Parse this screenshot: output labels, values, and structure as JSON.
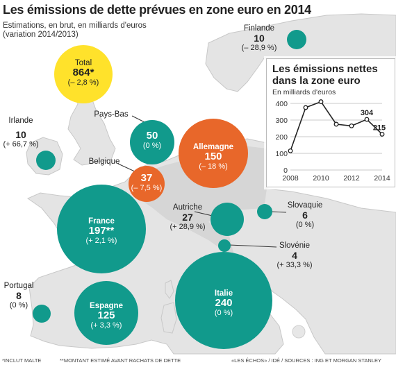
{
  "title": "Les émissions de dette prévues en zone euro en 2014",
  "subtitle_line1": "Estimations, en brut, en milliards d'euros",
  "subtitle_line2": "(variation 2014/2013)",
  "colors": {
    "teal": "#119a8c",
    "orange": "#e8672a",
    "yellow": "#ffe22b",
    "land": "#e4e4e4",
    "coast": "#c4c4c4",
    "sea": "#ffffff"
  },
  "countries": {
    "total": {
      "name": "Total",
      "value": "864*",
      "variation": "(– 2,8 %)"
    },
    "finlande": {
      "name": "Finlande",
      "value": "10",
      "variation": "(– 28,9 %)"
    },
    "irlande": {
      "name": "Irlande",
      "value": "10",
      "variation": "(+ 66,7 %)"
    },
    "pays_bas": {
      "name": "Pays-Bas",
      "value": "50",
      "variation": "(0 %)"
    },
    "allemagne": {
      "name": "Allemagne",
      "value": "150",
      "variation": "(– 18 %)"
    },
    "belgique": {
      "name": "Belgique",
      "value": "37",
      "variation": "(– 7,5 %)"
    },
    "autriche": {
      "name": "Autriche",
      "value": "27",
      "variation": "(+ 28,9 %)"
    },
    "slovaquie": {
      "name": "Slovaquie",
      "value": "6",
      "variation": "(0 %)"
    },
    "france": {
      "name": "France",
      "value": "197**",
      "variation": "(+ 2,1 %)"
    },
    "slovenie": {
      "name": "Slovénie",
      "value": "4",
      "variation": "(+ 33,3 %)"
    },
    "portugal": {
      "name": "Portugal",
      "value": "8",
      "variation": "(0 %)"
    },
    "espagne": {
      "name": "Espagne",
      "value": "125",
      "variation": "(+ 3,3 %)"
    },
    "italie": {
      "name": "Italie",
      "value": "240",
      "variation": "(0 %)"
    },
    "grece": {
      "name": "",
      "value": "",
      "variation": ""
    }
  },
  "inset": {
    "title_line1": "Les émissions nettes",
    "title_line2": "dans la zone euro",
    "subtitle": "En milliards d'euros"
  },
  "chart_data": {
    "type": "line",
    "title": "Les émissions nettes dans la zone euro",
    "subtitle": "En milliards d'euros",
    "x": [
      2008,
      2009,
      2010,
      2011,
      2012,
      2013,
      2014
    ],
    "series": [
      {
        "values": [
          115,
          375,
          410,
          275,
          265,
          304,
          215
        ]
      }
    ],
    "ylim": [
      0,
      400
    ],
    "yticks": [
      "0",
      "100",
      "200",
      "300",
      "400"
    ],
    "xticks": [
      "2008",
      "2010",
      "2012",
      "2014"
    ],
    "data_labels": {
      "2013": "304",
      "2014": "215"
    },
    "grid": "horizontal"
  },
  "footer": {
    "note1": "*INCLUT MALTE",
    "note2": "**MONTANT ESTIMÉ AVANT RACHATS DE DETTE",
    "source": "«LES ÉCHOS» / IDÉ / SOURCES : ING ET MORGAN STANLEY"
  }
}
